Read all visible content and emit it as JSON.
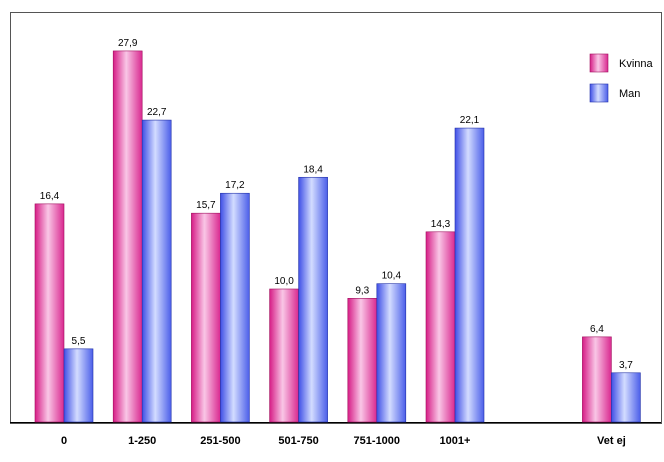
{
  "chart_data": {
    "type": "bar",
    "categories": [
      "0",
      "1-250",
      "251-500",
      "501-750",
      "751-1000",
      "1001+",
      "",
      "Vet ej"
    ],
    "series": [
      {
        "name": "Kvinna",
        "values": [
          16.4,
          27.9,
          15.7,
          10.0,
          9.3,
          14.3,
          null,
          6.4
        ],
        "labels": [
          "16,4",
          "27,9",
          "15,7",
          "10,0",
          "9,3",
          "14,3",
          "",
          "6,4"
        ],
        "color": "#e64da6"
      },
      {
        "name": "Man",
        "values": [
          5.5,
          22.7,
          17.2,
          18.4,
          10.4,
          22.1,
          null,
          3.7
        ],
        "labels": [
          "5,5",
          "22,7",
          "17,2",
          "18,4",
          "10,4",
          "22,1",
          "",
          "3,7"
        ],
        "color": "#5a6ff0"
      }
    ],
    "ylim": [
      0,
      30
    ],
    "grid": false,
    "legend_position": "top-right",
    "title": "",
    "xlabel": "",
    "ylabel": ""
  }
}
